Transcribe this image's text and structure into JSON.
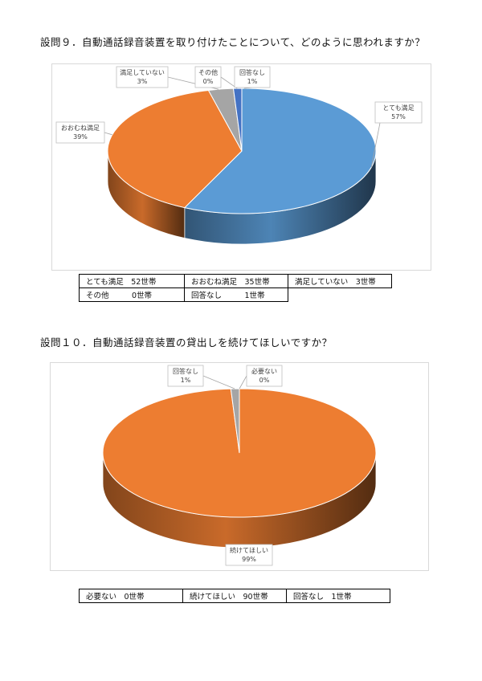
{
  "q9": {
    "title": "設問９．自動通話録音装置を取り付けたことについて、どのように思われますか？",
    "counts": [
      [
        "とても満足　52世帯",
        "おおむね満足　35世帯",
        "満足していない　3世帯"
      ],
      [
        "その他　　　0世帯",
        "回答なし　　　1世帯"
      ]
    ]
  },
  "q10": {
    "title": "設問１０．自動通話録音装置の貸出しを続けてほしいですか？",
    "counts": [
      [
        "必要ない　0世帯",
        "続けてほしい　90世帯",
        "回答なし　1世帯"
      ]
    ]
  },
  "chart_data": [
    {
      "type": "pie",
      "title": "",
      "categories": [
        "とても満足",
        "おおむね満足",
        "満足していない",
        "その他",
        "回答なし"
      ],
      "values": [
        57,
        39,
        3,
        0,
        1
      ],
      "value_labels": [
        "57%",
        "39%",
        "3%",
        "0%",
        "1%"
      ],
      "colors": [
        "#5b9bd5",
        "#ed7d31",
        "#a5a5a5",
        "#ffc000",
        "#4472c4"
      ]
    },
    {
      "type": "pie",
      "title": "",
      "categories": [
        "続けてほしい",
        "回答なし",
        "必要ない"
      ],
      "values": [
        99,
        1,
        0
      ],
      "value_labels": [
        "99%",
        "1%",
        "0%"
      ],
      "colors": [
        "#ed7d31",
        "#a5a5a5",
        "#5b9bd5"
      ]
    }
  ]
}
